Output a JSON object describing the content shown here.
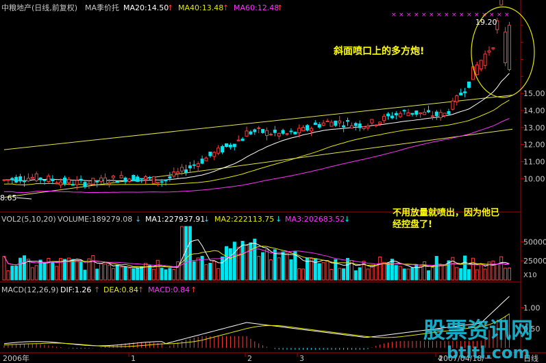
{
  "header": {
    "stock_title": "中粮地产(日线,前复权)",
    "ma_label": "MA季价托",
    "ma20": "MA20:14.50",
    "ma40": "MA40:13.48",
    "ma60": "MA60:12.48"
  },
  "volume_header": {
    "title": "VOL2(5,10,20)",
    "volume": "VOLUME:189279.08",
    "ma1": "MA1:227937.91",
    "ma2": "MA2:222113.75",
    "ma3": "MA3:202683.52"
  },
  "macd_header": {
    "title": "MACD(12,26,9)",
    "dif": "DIF:1.26",
    "dea": "DEA:0.84",
    "macd": "MACD:0.84"
  },
  "annotations": {
    "slope_note": "斜面喷口上的多方炮!",
    "volume_note_line1": "不用放量就喷出，因为他已",
    "volume_note_line2": "经控盘了!",
    "high_label": "19.20",
    "low_label": "8.65",
    "volume_unit": "X10"
  },
  "footer": {
    "year_label": "2006年",
    "date_label": "2007/04/18/一",
    "period_label": "日线",
    "months": [
      "1",
      "2",
      "3",
      "4"
    ]
  },
  "watermark": {
    "line1": "股票资讯网",
    "line2": "btltl.com"
  },
  "colors": {
    "up": "#ff3c3c",
    "down": "#00e5ee",
    "ma20": "#ffffff",
    "ma40": "#e6e600",
    "ma60": "#ff32ff",
    "trendline": "#e6e64a",
    "axis": "#b40000",
    "circle": "#e6e600"
  },
  "chart_data": {
    "type": "candlestick",
    "price_axis": {
      "ticks": [
        "15.00",
        "14.00",
        "13.00",
        "12.00",
        "11.00",
        "10.00"
      ],
      "ylim": [
        8.4,
        19.6
      ]
    },
    "volume_axis": {
      "ticks": [
        "50000",
        "25000"
      ],
      "unit": "X10"
    },
    "macd_axis": {
      "ticks": [
        "1.00",
        "0.50"
      ]
    },
    "price_extremes": {
      "high": 19.2,
      "low": 8.65
    },
    "price_range": {
      "start": 9.9,
      "end": 15.8
    }
  }
}
